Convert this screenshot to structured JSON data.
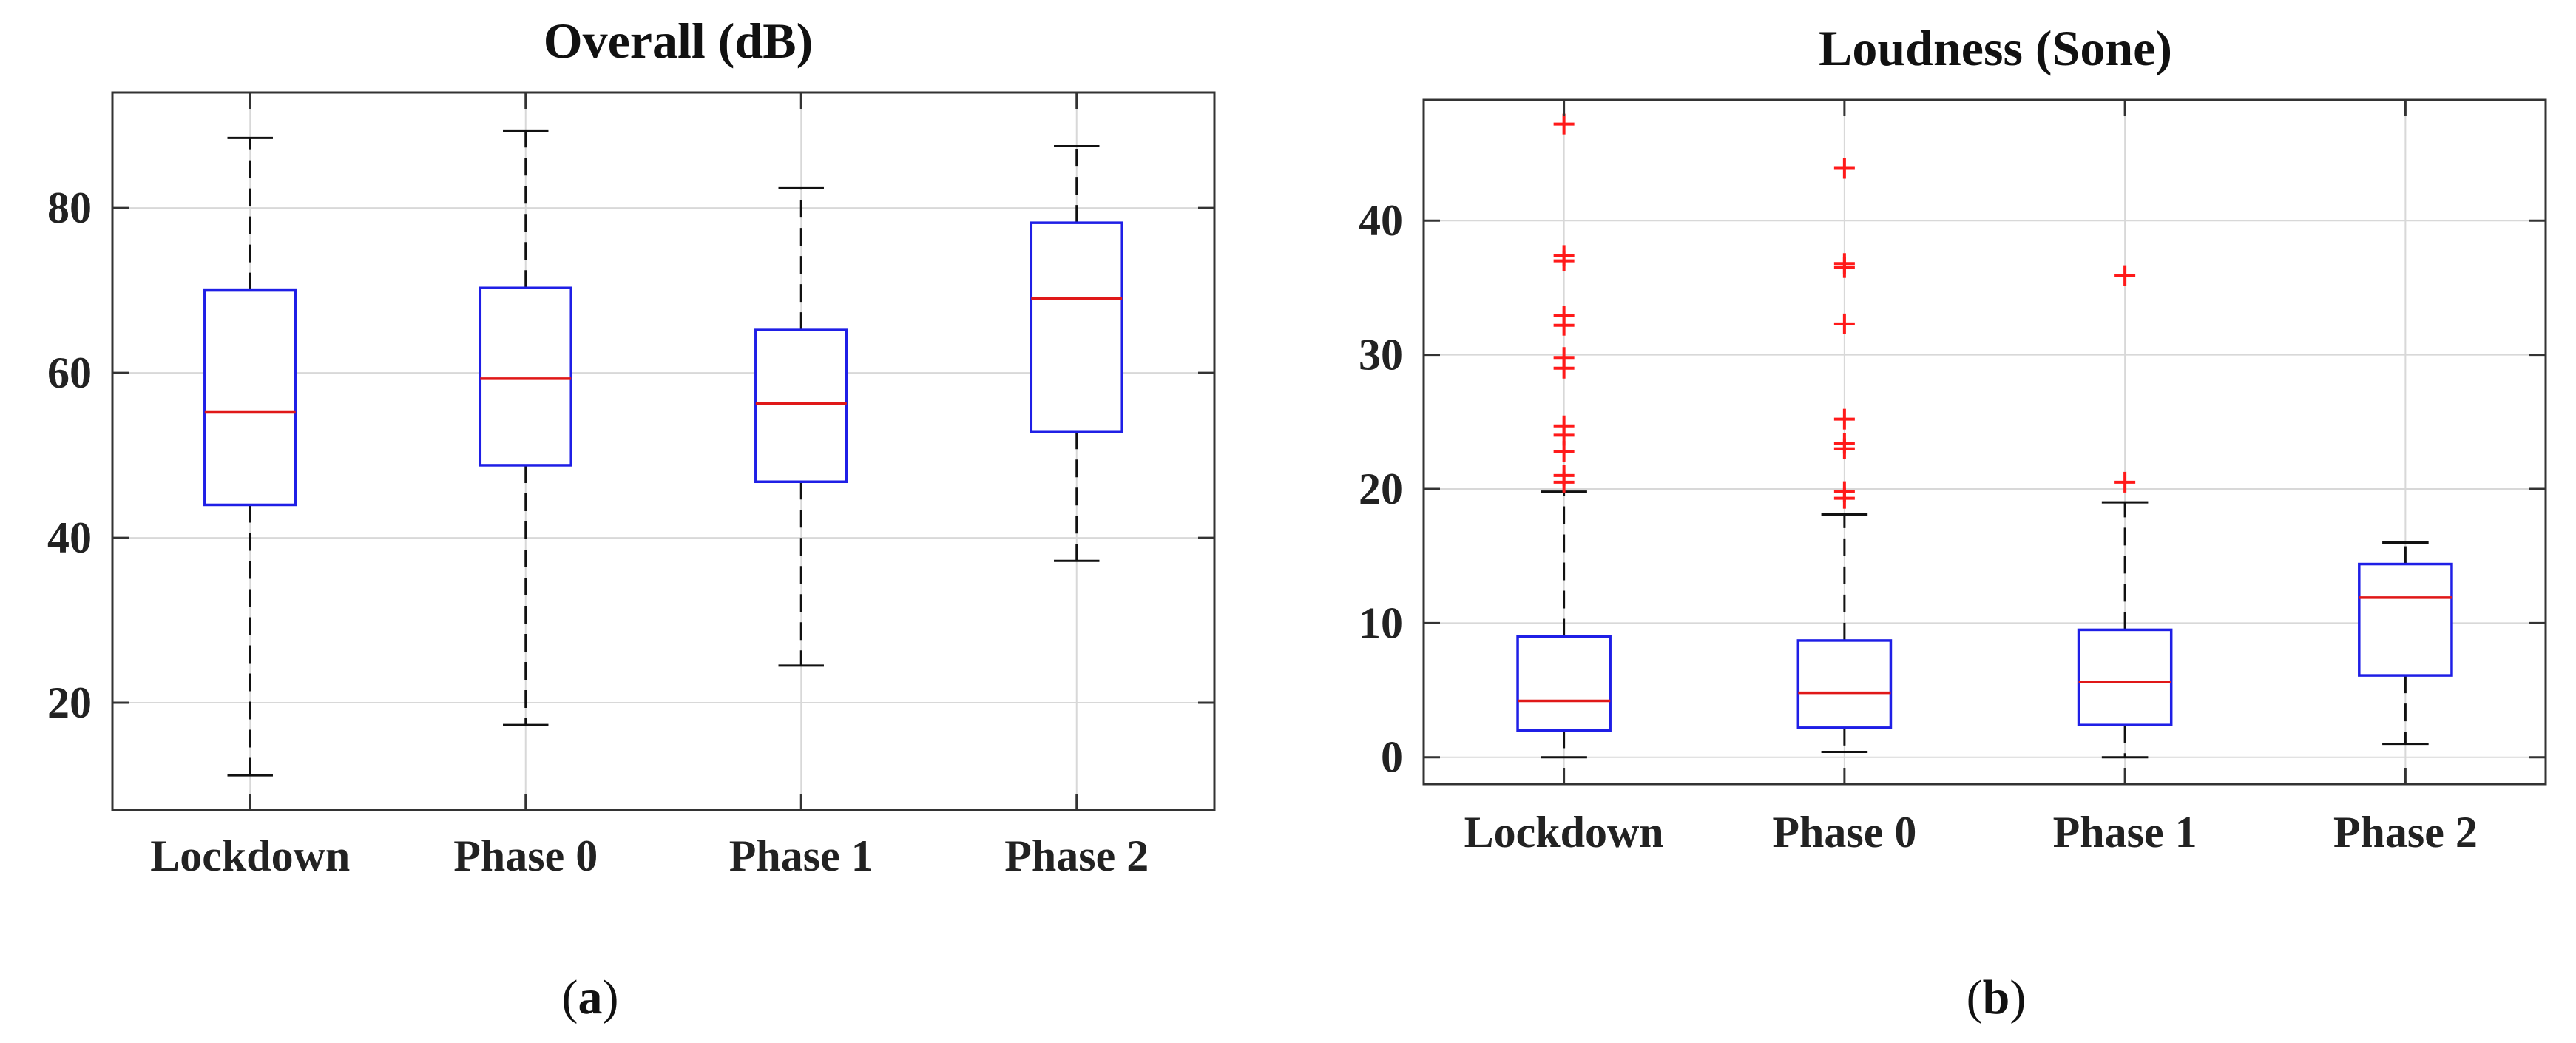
{
  "colors": {
    "box": "#1f1fe6",
    "median": "#e01818",
    "whisker": "#111111",
    "outlier": "#ff1a1a",
    "grid": "#d8d8d8",
    "axis": "#333333"
  },
  "captions": [
    {
      "open": "(",
      "letter": "a",
      "close": ")"
    },
    {
      "open": "(",
      "letter": "b",
      "close": ")"
    }
  ],
  "chart_data": [
    {
      "type": "box",
      "title": "Overall (dB)",
      "categories": [
        "Lockdown",
        "Phase 0",
        "Phase 1",
        "Phase 2"
      ],
      "ylim": [
        7,
        94
      ],
      "yticks": [
        20,
        40,
        60,
        80
      ],
      "ytick_labels": [
        "20",
        "40",
        "60",
        "80"
      ],
      "grid": true,
      "boxes": [
        {
          "whisker_low": 11.2,
          "q1": 44,
          "median": 55.3,
          "q3": 70,
          "whisker_high": 88.5,
          "outliers": []
        },
        {
          "whisker_low": 17.3,
          "q1": 48.8,
          "median": 59.3,
          "q3": 70.3,
          "whisker_high": 89.3,
          "outliers": []
        },
        {
          "whisker_low": 24.5,
          "q1": 46.8,
          "median": 56.3,
          "q3": 65.2,
          "whisker_high": 82.4,
          "outliers": []
        },
        {
          "whisker_low": 37.2,
          "q1": 52.9,
          "median": 69,
          "q3": 78.2,
          "whisker_high": 87.5,
          "outliers": []
        }
      ]
    },
    {
      "type": "box",
      "title": "Loudness (Sone)",
      "categories": [
        "Lockdown",
        "Phase 0",
        "Phase 1",
        "Phase 2"
      ],
      "ylim": [
        -2,
        49
      ],
      "yticks": [
        0,
        10,
        20,
        30,
        40
      ],
      "ytick_labels": [
        "0",
        "10",
        "20",
        "30",
        "40"
      ],
      "grid": true,
      "boxes": [
        {
          "whisker_low": 0,
          "q1": 2,
          "median": 4.2,
          "q3": 9,
          "whisker_high": 19.8,
          "outliers": [
            20.5,
            21,
            22.8,
            24,
            24.7,
            29,
            29.8,
            32.2,
            32.9,
            37,
            37.4,
            47.2
          ]
        },
        {
          "whisker_low": 0.4,
          "q1": 2.2,
          "median": 4.8,
          "q3": 8.7,
          "whisker_high": 18.1,
          "outliers": [
            19.3,
            19.8,
            23,
            23.4,
            25.2,
            32.3,
            36.5,
            36.8,
            43.9
          ]
        },
        {
          "whisker_low": 0,
          "q1": 2.4,
          "median": 5.6,
          "q3": 9.5,
          "whisker_high": 19,
          "outliers": [
            20.5,
            35.9
          ]
        },
        {
          "whisker_low": 1,
          "q1": 6.1,
          "median": 11.9,
          "q3": 14.4,
          "whisker_high": 16,
          "outliers": []
        }
      ]
    }
  ]
}
